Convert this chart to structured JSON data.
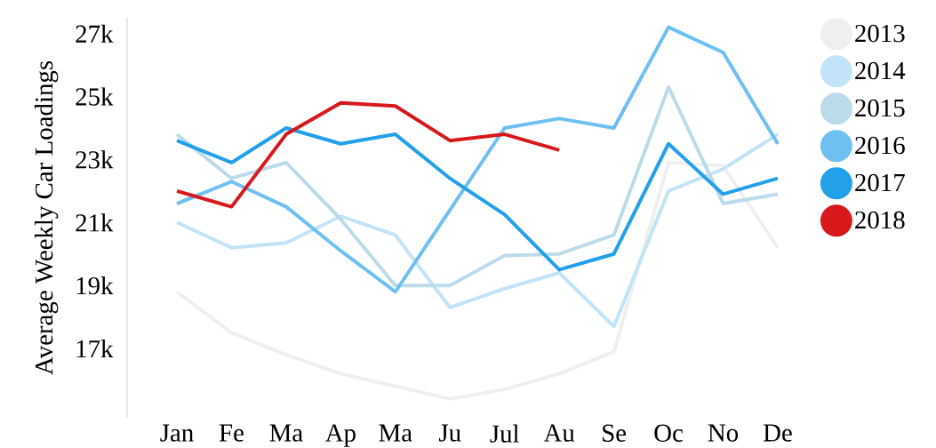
{
  "chart_data": {
    "type": "line",
    "ylabel": "Average Weekly Car Loadings",
    "categories": [
      "Jan",
      "Fe",
      "Ma",
      "Ap",
      "Ma",
      "Ju",
      "Jul",
      "Au",
      "Se",
      "Oc",
      "No",
      "De"
    ],
    "series": [
      {
        "name": "2013",
        "color": "#efefef",
        "values": [
          18800,
          17500,
          16800,
          16200,
          15800,
          15400,
          15700,
          16200,
          16900,
          22900,
          22800,
          20200
        ]
      },
      {
        "name": "2014",
        "color": "#c2e3f8",
        "values": [
          21000,
          20200,
          20350,
          21200,
          20600,
          18300,
          18900,
          19400,
          17700,
          22000,
          22700,
          23800
        ]
      },
      {
        "name": "2015",
        "color": "#bcdbea",
        "values": [
          23800,
          22400,
          22900,
          21100,
          19000,
          19000,
          19950,
          20000,
          20600,
          25300,
          21600,
          21900
        ]
      },
      {
        "name": "2016",
        "color": "#6ec0f2",
        "values": [
          21600,
          22300,
          21500,
          20100,
          18800,
          21400,
          24000,
          24300,
          24000,
          27200,
          26400,
          23500
        ]
      },
      {
        "name": "2017",
        "color": "#22a0ea",
        "values": [
          23600,
          22900,
          24000,
          23500,
          23800,
          22400,
          21250,
          19500,
          20000,
          23500,
          21900,
          22400
        ]
      },
      {
        "name": "2018",
        "color": "#d7191c",
        "values": [
          22000,
          21500,
          23800,
          24800,
          24700,
          23600,
          23800,
          23300,
          null,
          null,
          null,
          null
        ]
      }
    ],
    "ylim": [
      14800,
      27500
    ],
    "yticks": [
      {
        "value": 17000,
        "label": "17k"
      },
      {
        "value": 19000,
        "label": "19k"
      },
      {
        "value": 21000,
        "label": "21k"
      },
      {
        "value": 23000,
        "label": "23k"
      },
      {
        "value": 25000,
        "label": "25k"
      },
      {
        "value": 27000,
        "label": "27k"
      }
    ],
    "legend": "right",
    "line_style": "solid"
  }
}
